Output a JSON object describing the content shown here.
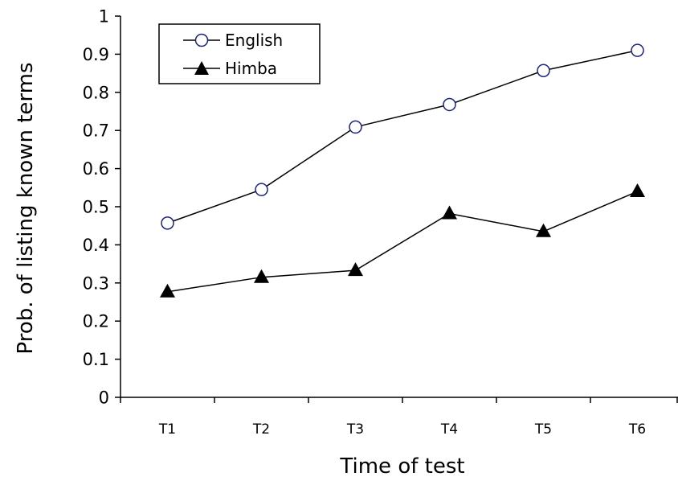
{
  "chart_data": {
    "type": "line",
    "title": "",
    "xlabel": "Time of test",
    "ylabel": "Prob. of listing known terms",
    "categories": [
      "T1",
      "T2",
      "T3",
      "T4",
      "T5",
      "T6"
    ],
    "ylim": [
      0,
      1
    ],
    "yticks": [
      "0",
      "0.1",
      "0.2",
      "0.3",
      "0.4",
      "0.5",
      "0.6",
      "0.7",
      "0.8",
      "0.9",
      "1"
    ],
    "grid": false,
    "legend_position": "top-left",
    "series": [
      {
        "name": "English",
        "marker": "open-circle",
        "color": "#1a237e",
        "values": [
          0.457,
          0.545,
          0.709,
          0.768,
          0.857,
          0.91
        ]
      },
      {
        "name": "Himba",
        "marker": "filled-triangle",
        "color": "#000000",
        "values": [
          0.277,
          0.315,
          0.333,
          0.482,
          0.435,
          0.54
        ]
      }
    ]
  }
}
